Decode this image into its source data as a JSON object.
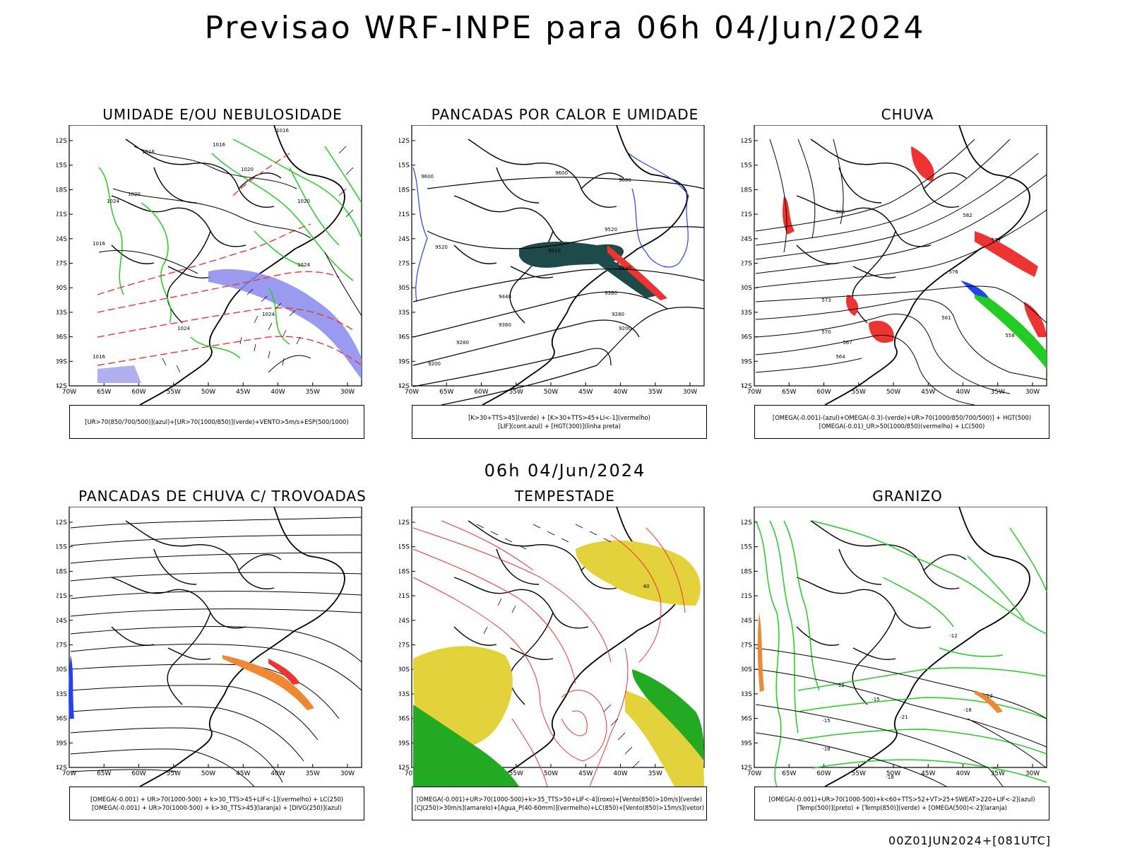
{
  "page": {
    "title": "Previsao WRF-INPE  para 06h 04/Jun/2024",
    "mid_title": "06h 04/Jun/2024",
    "footer": "00Z01JUN2024+[081UTC]"
  },
  "axes": {
    "lat_labels": [
      "12S",
      "15S",
      "18S",
      "21S",
      "24S",
      "27S",
      "30S",
      "33S",
      "36S",
      "39S",
      "42S"
    ],
    "lon_labels": [
      "70W",
      "65W",
      "60W",
      "55W",
      "50W",
      "45W",
      "40W",
      "35W",
      "30W"
    ]
  },
  "panels": [
    {
      "title": "UMIDADE E/OU NEBULOSIDADE",
      "legend": [
        "[UR>70(850/700/500)](azul)+[UR>70(1000/850)](verde)+VENTO>5m/s+ESP(500/1000)"
      ],
      "contour_labels": [
        "1016",
        "1016",
        "1016",
        "1020",
        "1020",
        "1020",
        "1024",
        "1024",
        "1024",
        "1024",
        "1016",
        "1016"
      ],
      "colors": {
        "blue": "#8888ee",
        "green": "#22cc22",
        "red": "#ee3333"
      }
    },
    {
      "title": "PANCADAS POR CALOR E UMIDADE",
      "legend": [
        "[K>30+TTS>45](verde) + [K>30+TTS>45+LI<-1](vermelho)",
        "[LIF](cont.azul) + [HGT(300)](linha preta)"
      ],
      "contour_labels": [
        "9600",
        "9600",
        "9520",
        "9600",
        "9520",
        "9520",
        "9440",
        "9440",
        "9360",
        "9360",
        "9280",
        "9280",
        "9200",
        "9200"
      ],
      "colors": {
        "dark": "#1f4a4a",
        "red": "#ee3333",
        "blue": "#2244ee"
      }
    },
    {
      "title": "CHUVA",
      "legend": [
        "[OMEGA(-0.001)-(azul)+OMEGA(-0.3)-(verde)+UR>70(1000/850/700/500)] + HGT(500)",
        "[OMEGA(-0.01)_UR>50(1000/850)(vermelho) + LC(500)"
      ],
      "contour_labels": [
        "585",
        "582",
        "579",
        "576",
        "573",
        "570",
        "567",
        "564",
        "561",
        "558"
      ],
      "colors": {
        "red": "#ee3333",
        "green": "#22cc22",
        "blue": "#2244ee"
      }
    },
    {
      "title": "PANCADAS DE CHUVA C/ TROVOADAS",
      "legend": [
        "[OMEGA(-0.001) + UR>70(1000-500) + k>30_TTS>45+LIF<-1](vermelho) + LC(250)",
        "[OMEGA(-0.001) + UR>70(1000-500) + k>30_TTS>45](laranja) + [DIVG(250)](azul)"
      ],
      "contour_labels": [],
      "colors": {
        "red": "#ee3333",
        "orange": "#ee8833",
        "blue": "#2244ee"
      }
    },
    {
      "title": "TEMPESTADE",
      "legend": [
        "[OMEGA(-0.001)+UR>70(1000-500)+k>35_TTS>50+LIF<-4](roxo)+[Vento(850)>10m/s](verde)",
        "[CJ(250)>30m/s](amarelo)+[Agua_P(40-60mm)](vermelho)+LC(850)+[Vento(850)>15m/s](vetor)"
      ],
      "contour_labels": [
        "40"
      ],
      "colors": {
        "yellow": "#e3d23a",
        "red": "#ee3333",
        "green": "#22aa22"
      }
    },
    {
      "title": "GRANIZO",
      "legend": [
        "[OMEGA(-0.001)+UR>70(1000-500)+k<60+TTS>52+VT>25+SWEAT>220+LIF<-2](azul)",
        "[Temp(500)](preto) + [Temp(850)](verde) + [OMEGA(500)<-2](laranja)"
      ],
      "contour_labels": [
        "-12",
        "-12",
        "-15",
        "-15",
        "-18",
        "-18",
        "-21",
        "-12",
        "-18"
      ],
      "colors": {
        "green": "#22cc22",
        "orange": "#ee8833"
      }
    }
  ]
}
